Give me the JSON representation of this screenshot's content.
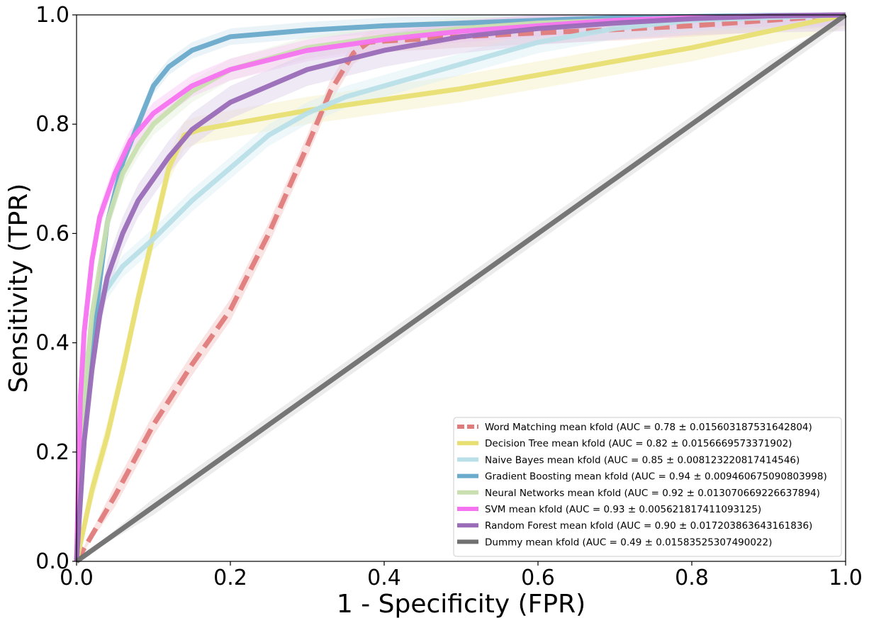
{
  "chart_data": {
    "type": "line",
    "title": "",
    "xlabel": "1 - Specificity (FPR)",
    "ylabel": "Sensitivity (TPR)",
    "xlim": [
      0.0,
      1.0
    ],
    "ylim": [
      0.0,
      1.0
    ],
    "xticks": [
      "0.0",
      "0.2",
      "0.4",
      "0.6",
      "0.8",
      "1.0"
    ],
    "yticks": [
      "0.0",
      "0.2",
      "0.4",
      "0.6",
      "0.8",
      "1.0"
    ],
    "grid": false,
    "legend_position": "bottom-right",
    "series": [
      {
        "name": "Word Matching mean kfold (AUC = 0.78 ± 0.015603187531642804)",
        "color": "#e07b7b",
        "band": "#f3c0c0",
        "dashed": true,
        "band_width": 0.02,
        "x": [
          0,
          0.05,
          0.1,
          0.15,
          0.2,
          0.25,
          0.3,
          0.33,
          0.36,
          0.38,
          0.4,
          0.5,
          0.6,
          0.7,
          0.8,
          0.9,
          1.0
        ],
        "y": [
          0,
          0.12,
          0.25,
          0.36,
          0.46,
          0.6,
          0.76,
          0.86,
          0.93,
          0.95,
          0.952,
          0.96,
          0.967,
          0.973,
          0.98,
          0.99,
          1.0
        ]
      },
      {
        "name": "Decision Tree mean kfold (AUC = 0.82 ± 0.0156669573371902)",
        "color": "#e8df72",
        "band": "#f3efc0",
        "dashed": false,
        "band_width": 0.025,
        "x": [
          0,
          0.02,
          0.04,
          0.06,
          0.08,
          0.1,
          0.12,
          0.14,
          0.16,
          0.2,
          0.3,
          0.4,
          0.5,
          0.6,
          0.7,
          0.8,
          0.9,
          1.0
        ],
        "y": [
          0,
          0.13,
          0.23,
          0.35,
          0.48,
          0.6,
          0.72,
          0.78,
          0.79,
          0.8,
          0.825,
          0.845,
          0.865,
          0.89,
          0.915,
          0.94,
          0.97,
          1.0
        ]
      },
      {
        "name": "Naive Bayes mean kfold (AUC = 0.85 ± 0.008123220817414546)",
        "color": "#b9dfe8",
        "band": "#d9eef3",
        "dashed": false,
        "band_width": 0.02,
        "x": [
          0,
          0.01,
          0.03,
          0.06,
          0.1,
          0.15,
          0.2,
          0.25,
          0.3,
          0.35,
          0.4,
          0.5,
          0.6,
          0.7,
          0.8,
          0.9,
          1.0
        ],
        "y": [
          0,
          0.35,
          0.48,
          0.54,
          0.59,
          0.66,
          0.72,
          0.78,
          0.82,
          0.85,
          0.87,
          0.91,
          0.95,
          0.975,
          0.99,
          0.995,
          1.0
        ]
      },
      {
        "name": "Gradient Boosting mean kfold (AUC = 0.94 ± 0.009460675090803998)",
        "color": "#6aaacb",
        "band": "#cfe5ef",
        "dashed": false,
        "band_width": 0.015,
        "x": [
          0,
          0.01,
          0.02,
          0.04,
          0.06,
          0.08,
          0.1,
          0.12,
          0.15,
          0.2,
          0.3,
          0.4,
          0.5,
          0.6,
          0.7,
          0.8,
          0.9,
          1.0
        ],
        "y": [
          0,
          0.25,
          0.4,
          0.62,
          0.73,
          0.8,
          0.87,
          0.905,
          0.935,
          0.96,
          0.972,
          0.98,
          0.985,
          0.99,
          0.995,
          0.997,
          0.999,
          1.0
        ]
      },
      {
        "name": "Neural Networks mean kfold (AUC = 0.92 ± 0.013070669226637894)",
        "color": "#c9dfb0",
        "band": "#e5efd9",
        "dashed": false,
        "band_width": 0.02,
        "x": [
          0,
          0.01,
          0.02,
          0.04,
          0.06,
          0.08,
          0.1,
          0.15,
          0.2,
          0.3,
          0.4,
          0.5,
          0.6,
          0.7,
          0.8,
          0.9,
          1.0
        ],
        "y": [
          0,
          0.3,
          0.45,
          0.62,
          0.71,
          0.76,
          0.8,
          0.86,
          0.9,
          0.94,
          0.96,
          0.975,
          0.985,
          0.99,
          0.995,
          0.998,
          1.0
        ]
      },
      {
        "name": "SVM mean kfold (AUC = 0.93 ± 0.005621817411093125)",
        "color": "#f573f0",
        "band": "#f9c6f6",
        "dashed": false,
        "band_width": 0.02,
        "x": [
          0,
          0.005,
          0.01,
          0.02,
          0.03,
          0.05,
          0.07,
          0.1,
          0.15,
          0.2,
          0.3,
          0.4,
          0.5,
          0.6,
          0.7,
          0.8,
          0.9,
          1.0
        ],
        "y": [
          0,
          0.3,
          0.42,
          0.55,
          0.63,
          0.71,
          0.77,
          0.82,
          0.87,
          0.9,
          0.935,
          0.955,
          0.97,
          0.98,
          0.99,
          0.995,
          0.998,
          1.0
        ]
      },
      {
        "name": "Random Forest mean kfold (AUC = 0.90 ± 0.017203863643161836)",
        "color": "#9a6cb8",
        "band": "#dccbe9",
        "dashed": false,
        "band_width": 0.03,
        "x": [
          0,
          0.01,
          0.02,
          0.03,
          0.04,
          0.06,
          0.08,
          0.1,
          0.12,
          0.15,
          0.2,
          0.25,
          0.3,
          0.4,
          0.5,
          0.6,
          0.7,
          0.8,
          0.9,
          1.0
        ],
        "y": [
          0,
          0.22,
          0.35,
          0.45,
          0.52,
          0.6,
          0.66,
          0.7,
          0.74,
          0.79,
          0.84,
          0.87,
          0.9,
          0.935,
          0.96,
          0.975,
          0.985,
          0.993,
          0.998,
          1.0
        ]
      },
      {
        "name": "Dummy mean kfold (AUC = 0.49 ± 0.01583525307490022)",
        "color": "#707070",
        "band": "#d5d5d5",
        "dashed": false,
        "band_width": 0.015,
        "x": [
          0,
          0.1,
          0.2,
          0.3,
          0.4,
          0.5,
          0.6,
          0.7,
          0.8,
          0.9,
          1.0
        ],
        "y": [
          0,
          0.1,
          0.2,
          0.3,
          0.4,
          0.5,
          0.6,
          0.7,
          0.8,
          0.9,
          1.0
        ]
      }
    ]
  }
}
